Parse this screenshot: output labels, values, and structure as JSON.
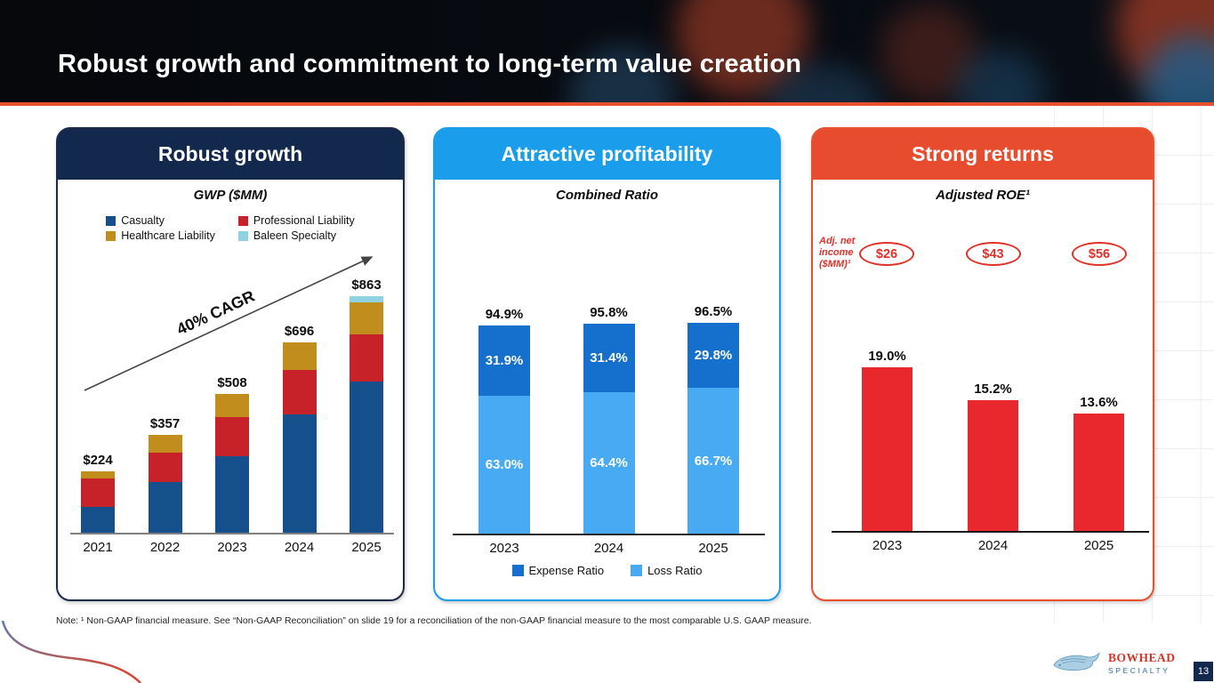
{
  "header": {
    "title": "Robust growth and commitment to long-term value creation"
  },
  "panels": [
    {
      "header": "Robust growth",
      "chart_title": "GWP ($MM)"
    },
    {
      "header": "Attractive profitability",
      "chart_title": "Combined Ratio"
    },
    {
      "header": "Strong returns",
      "chart_title": "Adjusted ROE¹"
    }
  ],
  "chart_data": [
    {
      "type": "bar",
      "stacked": true,
      "title": "GWP ($MM)",
      "annotation": "40% CAGR",
      "categories": [
        "2021",
        "2022",
        "2023",
        "2024",
        "2025"
      ],
      "series": [
        {
          "name": "Casualty",
          "color": "#15508c",
          "values": [
            94,
            185,
            279,
            432,
            551
          ]
        },
        {
          "name": "Professional Liability",
          "color": "#c7222a",
          "values": [
            103,
            107,
            144,
            162,
            173
          ]
        },
        {
          "name": "Healthcare Liability",
          "color": "#c18e1e",
          "values": [
            27,
            65,
            85,
            102,
            117
          ]
        },
        {
          "name": "Baleen Specialty",
          "color": "#8fd3e3",
          "values": [
            0,
            0,
            0,
            0,
            22
          ]
        }
      ],
      "totals": [
        "$224",
        "$357",
        "$508",
        "$696",
        "$863"
      ],
      "legend_position": "top",
      "ylim": [
        0,
        900
      ]
    },
    {
      "type": "bar",
      "stacked": true,
      "title": "Combined Ratio",
      "categories": [
        "2023",
        "2024",
        "2025"
      ],
      "series": [
        {
          "name": "Loss Ratio",
          "color": "#47aaf2",
          "values": [
            63.0,
            64.4,
            66.7
          ],
          "labels": [
            "63.0%",
            "64.4%",
            "66.7%"
          ]
        },
        {
          "name": "Expense Ratio",
          "color": "#1470cc",
          "values": [
            31.9,
            31.4,
            29.8
          ],
          "labels": [
            "31.9%",
            "31.4%",
            "29.8%"
          ]
        }
      ],
      "totals": [
        "94.9%",
        "95.8%",
        "96.5%"
      ],
      "legend_order": [
        "Expense Ratio",
        "Loss Ratio"
      ],
      "legend_position": "bottom",
      "ylim": [
        0,
        100
      ]
    },
    {
      "type": "bar",
      "title": "Adjusted ROE¹",
      "categories": [
        "2023",
        "2024",
        "2025"
      ],
      "values": [
        19.0,
        15.2,
        13.6
      ],
      "labels": [
        "19.0%",
        "15.2%",
        "13.6%"
      ],
      "bar_color": "#e8282d",
      "annotation_label": "Adj. net income ($MM)¹",
      "annotation_values": [
        "$26",
        "$43",
        "$56"
      ],
      "ylim": [
        0,
        20
      ]
    }
  ],
  "footnote": "Note: ¹ Non-GAAP financial measure. See “Non-GAAP Reconciliation” on slide 19 for a reconciliation of the non-GAAP financial measure to the most comparable U.S. GAAP measure.",
  "logo": {
    "brand": "BOWHEAD",
    "sub_brand": "SPECIALTY"
  },
  "page_number": "13",
  "colors": {
    "accent_orange": "#e8502e",
    "navy": "#12284c",
    "azure": "#1a9dea",
    "red": "#e8282d"
  }
}
